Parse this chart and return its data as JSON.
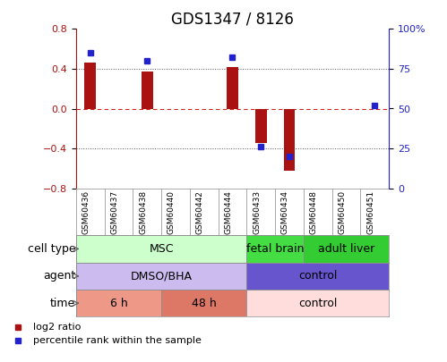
{
  "title": "GDS1347 / 8126",
  "samples": [
    "GSM60436",
    "GSM60437",
    "GSM60438",
    "GSM60440",
    "GSM60442",
    "GSM60444",
    "GSM60433",
    "GSM60434",
    "GSM60448",
    "GSM60450",
    "GSM60451"
  ],
  "log2_ratio": [
    0.46,
    0.0,
    0.37,
    0.0,
    0.0,
    0.42,
    -0.35,
    -0.62,
    0.0,
    0.0,
    0.0
  ],
  "percentile_rank": [
    85,
    0,
    80,
    0,
    0,
    82,
    26,
    20,
    0,
    0,
    52
  ],
  "ylim_left": [
    -0.8,
    0.8
  ],
  "ylim_right": [
    0,
    100
  ],
  "bar_color": "#aa1111",
  "dot_color": "#2222cc",
  "gridline_color": "#555555",
  "zero_line_color": "#cc2222",
  "cell_type_rows": [
    {
      "label": "MSC",
      "start": 0,
      "end": 6,
      "color": "#ccffcc"
    },
    {
      "label": "fetal brain",
      "start": 6,
      "end": 8,
      "color": "#44dd44"
    },
    {
      "label": "adult liver",
      "start": 8,
      "end": 11,
      "color": "#33cc33"
    }
  ],
  "agent_rows": [
    {
      "label": "DMSO/BHA",
      "start": 0,
      "end": 6,
      "color": "#ccbbee"
    },
    {
      "label": "control",
      "start": 6,
      "end": 11,
      "color": "#6655cc"
    }
  ],
  "time_rows": [
    {
      "label": "6 h",
      "start": 0,
      "end": 3,
      "color": "#ee9988"
    },
    {
      "label": "48 h",
      "start": 3,
      "end": 6,
      "color": "#dd7766"
    },
    {
      "label": "control",
      "start": 6,
      "end": 11,
      "color": "#ffdddd"
    }
  ],
  "row_labels": [
    "cell type",
    "agent",
    "time"
  ],
  "legend_bar_label": "log2 ratio",
  "legend_dot_label": "percentile rank within the sample",
  "title_fontsize": 12,
  "tick_fontsize": 8,
  "label_fontsize": 9,
  "annotation_fontsize": 9
}
